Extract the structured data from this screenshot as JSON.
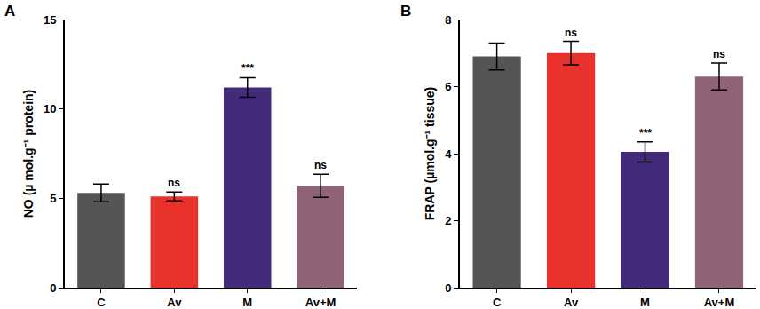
{
  "chart_data": [
    {
      "type": "bar",
      "title": "A",
      "y_label": "NO (µ mol.g⁻¹ protein)",
      "categories": [
        "C",
        "Av",
        "M",
        "Av+M"
      ],
      "values": [
        5.3,
        5.1,
        11.2,
        5.7
      ],
      "errors": [
        0.5,
        0.25,
        0.55,
        0.65
      ],
      "colors": [
        "#555555",
        "#e8322b",
        "#432a7a",
        "#906377"
      ],
      "ylim": [
        0,
        15
      ],
      "yticks": [
        0,
        5,
        10,
        15
      ],
      "grid": false,
      "annotations": [
        {
          "category": "Av",
          "text": "ns"
        },
        {
          "category": "M",
          "text": "***"
        },
        {
          "category": "Av+M",
          "text": "ns"
        }
      ]
    },
    {
      "type": "bar",
      "title": "B",
      "y_label": "FRAP (µmol.g⁻¹ tissue)",
      "categories": [
        "C",
        "Av",
        "M",
        "Av+M"
      ],
      "values": [
        6.9,
        7.0,
        4.05,
        6.3
      ],
      "errors": [
        0.4,
        0.35,
        0.3,
        0.4
      ],
      "colors": [
        "#555555",
        "#e8322b",
        "#432a7a",
        "#906377"
      ],
      "ylim": [
        0,
        8
      ],
      "yticks": [
        0,
        2,
        4,
        6,
        8
      ],
      "grid": false,
      "annotations": [
        {
          "category": "Av",
          "text": "ns"
        },
        {
          "category": "M",
          "text": "***"
        },
        {
          "category": "Av+M",
          "text": "ns"
        }
      ]
    }
  ]
}
